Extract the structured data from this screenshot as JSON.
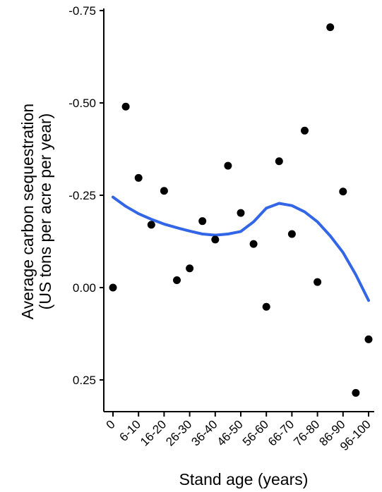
{
  "chart_data": {
    "type": "scatter",
    "xlabel": "Stand age (years)",
    "ylabel_line1": "Average carbon sequestration",
    "ylabel_line2": "(US tons per acre per year)",
    "x_tick_labels": [
      "0",
      "6-10",
      "16-20",
      "26-30",
      "36-40",
      "46-50",
      "56-60",
      "66-70",
      "76-80",
      "86-90",
      "96-100"
    ],
    "x_tick_positions": [
      0,
      10,
      20,
      30,
      40,
      50,
      60,
      70,
      80,
      90,
      100
    ],
    "xlim": [
      0,
      100
    ],
    "y_ticks": [
      {
        "value": -0.75,
        "label": "-0.75"
      },
      {
        "value": -0.5,
        "label": "-0.50"
      },
      {
        "value": -0.25,
        "label": "-0.25"
      },
      {
        "value": 0.0,
        "label": "0.00"
      },
      {
        "value": 0.25,
        "label": "0.25"
      }
    ],
    "ylim": [
      -0.75,
      0.25
    ],
    "y_reversed": true,
    "grid": false,
    "point_color": "#000000",
    "smooth_color": "#3366e6",
    "points": [
      {
        "x": 0,
        "y": 0.0
      },
      {
        "x": 5,
        "y": -0.49
      },
      {
        "x": 10,
        "y": -0.297
      },
      {
        "x": 15,
        "y": -0.17
      },
      {
        "x": 20,
        "y": -0.262
      },
      {
        "x": 25,
        "y": -0.02
      },
      {
        "x": 30,
        "y": -0.052
      },
      {
        "x": 35,
        "y": -0.18
      },
      {
        "x": 40,
        "y": -0.13
      },
      {
        "x": 45,
        "y": -0.33
      },
      {
        "x": 50,
        "y": -0.202
      },
      {
        "x": 55,
        "y": -0.118
      },
      {
        "x": 60,
        "y": 0.052
      },
      {
        "x": 65,
        "y": -0.342
      },
      {
        "x": 70,
        "y": -0.145
      },
      {
        "x": 75,
        "y": -0.425
      },
      {
        "x": 80,
        "y": -0.015
      },
      {
        "x": 85,
        "y": -0.705
      },
      {
        "x": 90,
        "y": -0.26
      },
      {
        "x": 95,
        "y": 0.285
      },
      {
        "x": 100,
        "y": 0.14
      }
    ],
    "smooth": [
      {
        "x": 0,
        "y": -0.245
      },
      {
        "x": 5,
        "y": -0.22
      },
      {
        "x": 10,
        "y": -0.2
      },
      {
        "x": 15,
        "y": -0.185
      },
      {
        "x": 20,
        "y": -0.172
      },
      {
        "x": 25,
        "y": -0.162
      },
      {
        "x": 30,
        "y": -0.153
      },
      {
        "x": 35,
        "y": -0.145
      },
      {
        "x": 40,
        "y": -0.142
      },
      {
        "x": 45,
        "y": -0.145
      },
      {
        "x": 50,
        "y": -0.152
      },
      {
        "x": 55,
        "y": -0.178
      },
      {
        "x": 60,
        "y": -0.215
      },
      {
        "x": 65,
        "y": -0.228
      },
      {
        "x": 70,
        "y": -0.222
      },
      {
        "x": 75,
        "y": -0.205
      },
      {
        "x": 80,
        "y": -0.178
      },
      {
        "x": 85,
        "y": -0.14
      },
      {
        "x": 90,
        "y": -0.095
      },
      {
        "x": 95,
        "y": -0.035
      },
      {
        "x": 100,
        "y": 0.035
      }
    ]
  }
}
